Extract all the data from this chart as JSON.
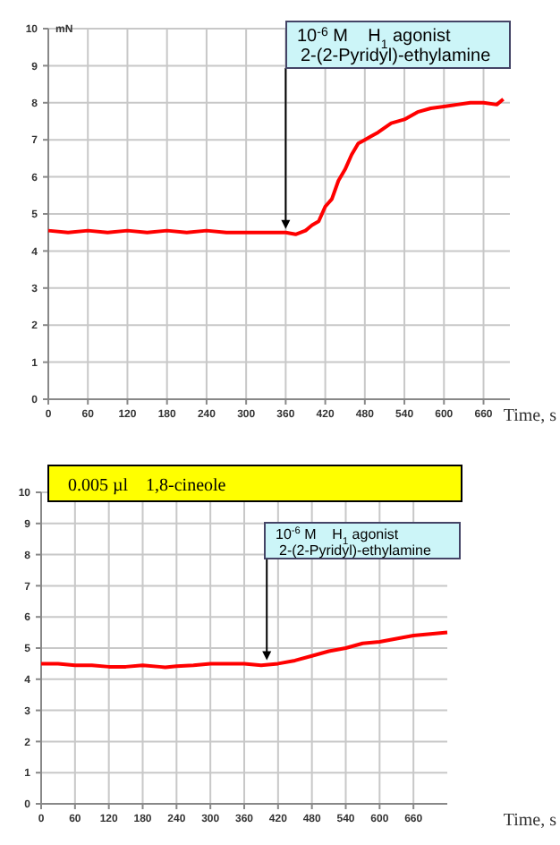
{
  "chart_data": [
    {
      "type": "line",
      "ylabel": "mN",
      "xlabel": "Time, s",
      "x": [
        0,
        30,
        60,
        90,
        120,
        150,
        180,
        210,
        240,
        270,
        300,
        330,
        360,
        375,
        390,
        400,
        410,
        420,
        430,
        440,
        450,
        460,
        470,
        480,
        490,
        500,
        520,
        540,
        560,
        580,
        600,
        620,
        640,
        660,
        680,
        690
      ],
      "series": [
        {
          "color": "#ff0000",
          "values": [
            4.55,
            4.5,
            4.55,
            4.5,
            4.55,
            4.5,
            4.55,
            4.5,
            4.55,
            4.5,
            4.5,
            4.5,
            4.5,
            4.45,
            4.55,
            4.7,
            4.8,
            5.2,
            5.4,
            5.9,
            6.2,
            6.6,
            6.9,
            7.0,
            7.1,
            7.2,
            7.45,
            7.55,
            7.75,
            7.85,
            7.9,
            7.95,
            8.0,
            8.0,
            7.95,
            8.1
          ]
        }
      ],
      "xlim": [
        0,
        700
      ],
      "ylim": [
        0,
        10
      ],
      "xticks": [
        0,
        60,
        120,
        180,
        240,
        300,
        360,
        420,
        480,
        540,
        600,
        660
      ],
      "yticks": [
        0,
        1,
        2,
        3,
        4,
        5,
        6,
        7,
        8,
        9,
        10
      ],
      "grid": true,
      "marker": "none",
      "line_style": "solid",
      "annotations": [
        {
          "text": "10$^{-6}$ M    H$_{1}$ agonist\n2-(2-Pyridyl)-ethylamine",
          "x": 360,
          "y": 4.5
        }
      ]
    },
    {
      "type": "line",
      "title": "0.005 µl    1,8-cineole",
      "xlabel": "Time, s",
      "x": [
        0,
        30,
        60,
        90,
        120,
        150,
        180,
        210,
        220,
        240,
        270,
        300,
        330,
        360,
        390,
        420,
        450,
        480,
        510,
        540,
        570,
        600,
        630,
        660,
        690,
        720
      ],
      "series": [
        {
          "color": "#ff0000",
          "values": [
            4.5,
            4.5,
            4.45,
            4.45,
            4.4,
            4.4,
            4.45,
            4.4,
            4.38,
            4.42,
            4.45,
            4.5,
            4.5,
            4.5,
            4.45,
            4.5,
            4.6,
            4.75,
            4.9,
            5.0,
            5.15,
            5.2,
            5.3,
            5.4,
            5.45,
            5.5
          ]
        }
      ],
      "xlim": [
        0,
        720
      ],
      "ylim": [
        0,
        10
      ],
      "xticks": [
        0,
        60,
        120,
        180,
        240,
        300,
        360,
        420,
        480,
        540,
        600,
        660
      ],
      "yticks": [
        0,
        1,
        2,
        3,
        4,
        5,
        6,
        7,
        8,
        9,
        10
      ],
      "grid": true,
      "marker": "none",
      "line_style": "solid",
      "annotations": [
        {
          "text": "10$^{-6}$ M    H$_{1}$ agonist\n2-(2-Pyridyl)-ethylamine",
          "x": 400,
          "y": 4.5
        }
      ]
    }
  ]
}
